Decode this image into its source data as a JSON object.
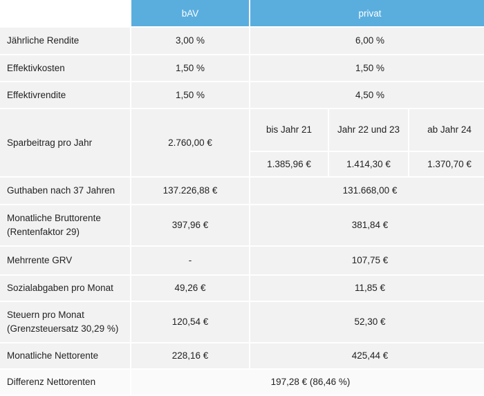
{
  "header": {
    "bav": "bAV",
    "privat": "privat"
  },
  "rows": [
    {
      "label": "Jährliche Rendite",
      "bav": "3,00 %",
      "privat": "6,00 %"
    },
    {
      "label": "Effektivkosten",
      "bav": "1,50 %",
      "privat": "1,50 %"
    },
    {
      "label": "Effektivrendite",
      "bav": "1,50 %",
      "privat": "4,50 %"
    },
    {
      "label": "Sparbeitrag pro Jahr",
      "bav": "2.760,00 €",
      "privat_periods": [
        "bis Jahr 21",
        "Jahr 22 und 23",
        "ab Jahr 24"
      ],
      "privat_values": [
        "1.385,96 €",
        "1.414,30 €",
        "1.370,70 €"
      ]
    },
    {
      "label": "Guthaben nach 37 Jahren",
      "bav": "137.226,88 €",
      "privat": "131.668,00 €"
    },
    {
      "label": "Monatliche Bruttorente (Rentenfaktor 29)",
      "bav": "397,96 €",
      "privat": "381,84 €"
    },
    {
      "label": "Mehrrente GRV",
      "bav": "-",
      "privat": "107,75 €"
    },
    {
      "label": "Sozialabgaben pro Monat",
      "bav": "49,26 €",
      "privat": "11,85 €"
    },
    {
      "label": "Steuern pro Monat (Grenzsteuersatz 30,29 %)",
      "bav": "120,54 €",
      "privat": "52,30 €"
    },
    {
      "label": "Monatliche Nettorente",
      "bav": "228,16 €",
      "privat": "425,44 €"
    },
    {
      "label": "Differenz Nettorenten",
      "value": "197,28 € (86,46 %)"
    }
  ]
}
